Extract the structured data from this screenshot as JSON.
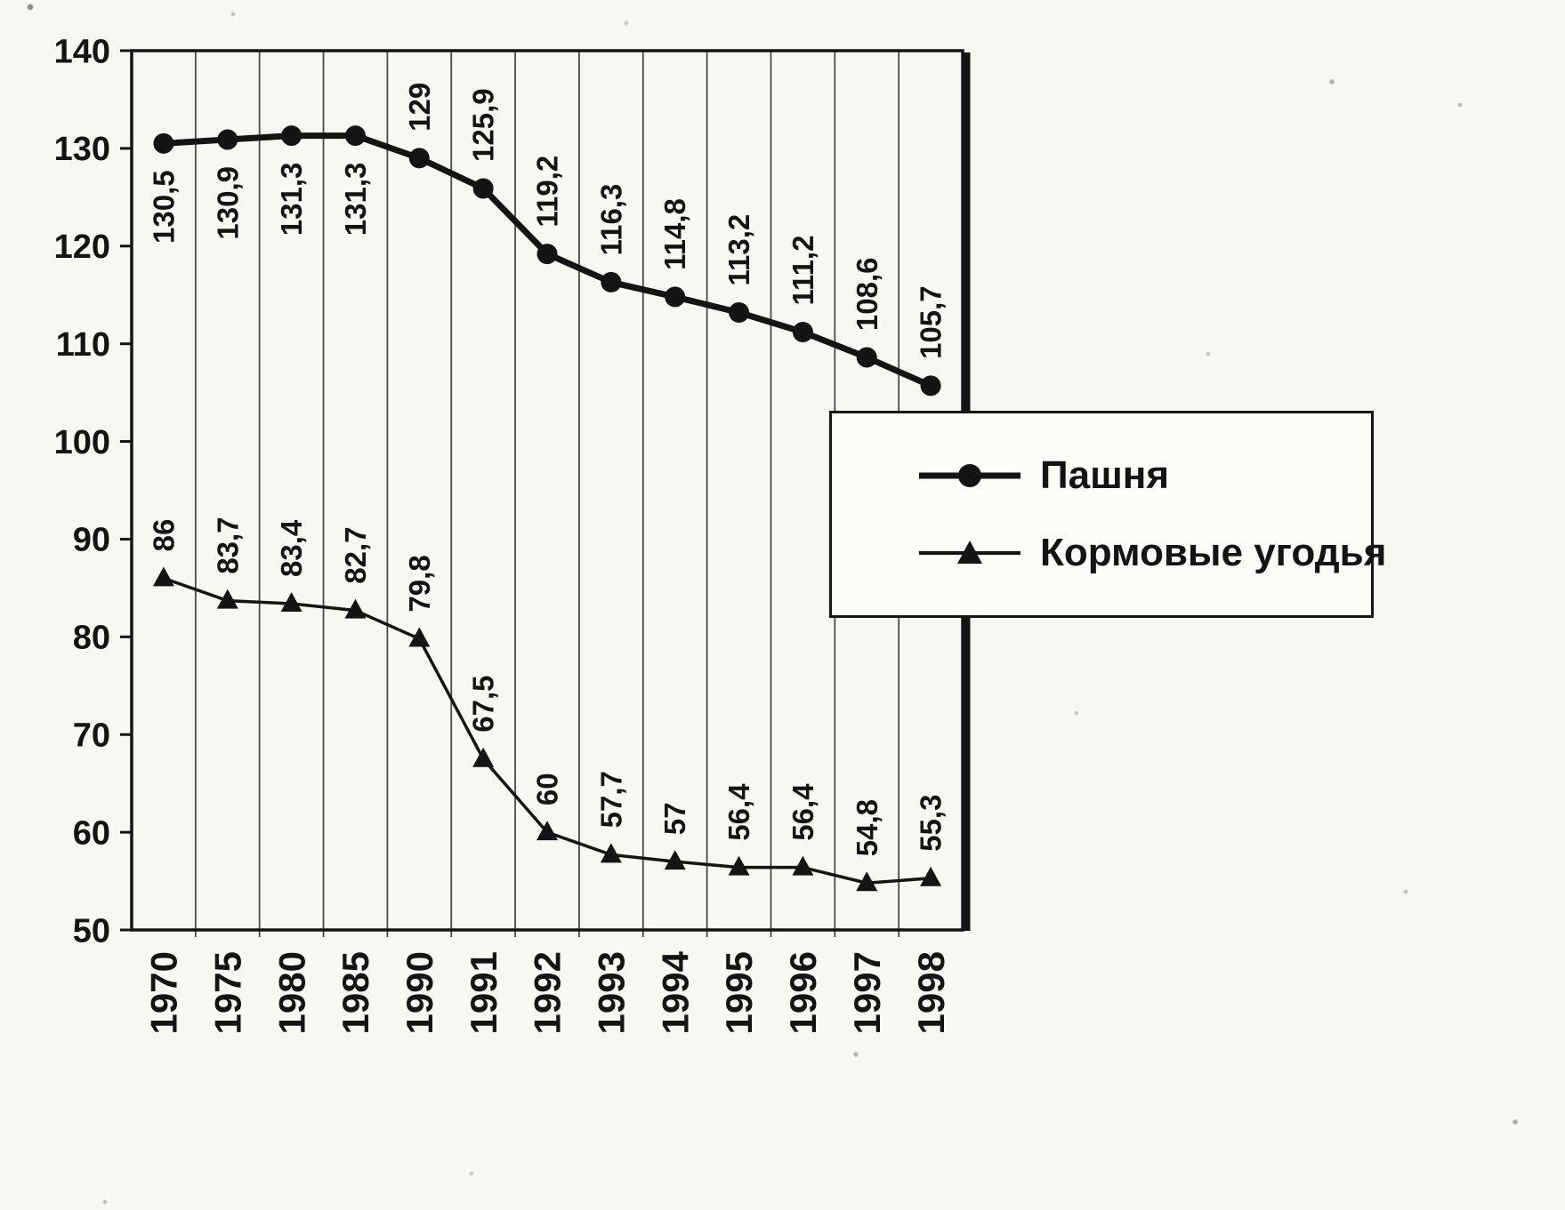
{
  "chart_data": {
    "type": "line",
    "title": "",
    "xlabel": "",
    "ylabel": "",
    "categories": [
      "1970",
      "1975",
      "1980",
      "1985",
      "1990",
      "1991",
      "1992",
      "1993",
      "1994",
      "1995",
      "1996",
      "1997",
      "1998"
    ],
    "series": [
      {
        "name": "Пашня",
        "marker": "circle",
        "values": [
          130.5,
          130.9,
          131.3,
          131.3,
          129,
          125.9,
          119.2,
          116.3,
          114.8,
          113.2,
          111.2,
          108.6,
          105.7
        ],
        "labels": [
          "130,5",
          "130,9",
          "131,3",
          "131,3",
          "129",
          "125,9",
          "119,2",
          "116,3",
          "114,8",
          "113,2",
          "111,2",
          "108,6",
          "105,7"
        ]
      },
      {
        "name": "Кормовые угодья",
        "marker": "triangle",
        "values": [
          86,
          83.7,
          83.4,
          82.7,
          79.8,
          67.5,
          60,
          57.7,
          57,
          56.4,
          56.4,
          54.8,
          55.3
        ],
        "labels": [
          "86",
          "83,7",
          "83,4",
          "82,7",
          "79,8",
          "67,5",
          "60",
          "57,7",
          "57",
          "56,4",
          "56,4",
          "54,8",
          "55,3"
        ]
      }
    ],
    "ylim": [
      50,
      140
    ],
    "ytick_step": 10,
    "yticks": [
      "50",
      "60",
      "70",
      "80",
      "90",
      "100",
      "110",
      "120",
      "130",
      "140"
    ],
    "grid": "vertical",
    "legend_position": "right-overlay"
  },
  "legend": {
    "items": [
      {
        "label": "Пашня",
        "marker": "circle"
      },
      {
        "label": "Кормовые угодья",
        "marker": "triangle"
      }
    ]
  },
  "colors": {
    "line": "#141414",
    "text": "#141414",
    "grid": "#4a4a4a",
    "frame": "#141414",
    "background": "#f8f7f2",
    "legend_bg": "#fcfcf9"
  }
}
